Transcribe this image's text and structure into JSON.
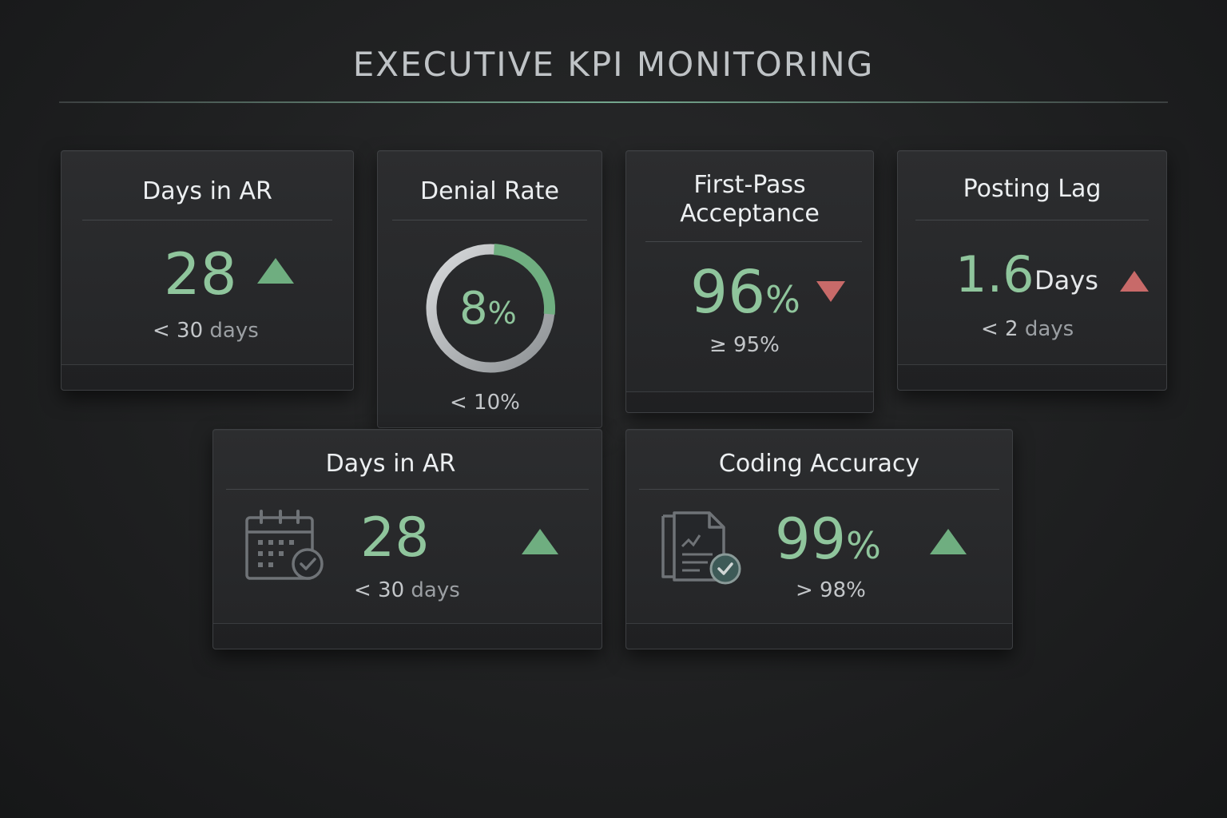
{
  "header": {
    "title": "EXECUTIVE KPI MONITORING"
  },
  "colors": {
    "accent_green": "#8fc59c",
    "trend_green": "#6fae80",
    "trend_red": "#c86a69",
    "background": "#1f2021"
  },
  "cards": [
    {
      "title": "Days in AR",
      "value": "28",
      "unit": "",
      "trend": "up-green",
      "target_main": "< 30",
      "target_suffix": "days"
    },
    {
      "title": "Denial Rate",
      "value": "8",
      "unit": "%",
      "gauge_fraction": 0.08,
      "target_main": "< 10%",
      "target_suffix": ""
    },
    {
      "title_line1": "First-Pass",
      "title_line2": "Acceptance",
      "value": "96",
      "unit": "%",
      "trend": "down-red",
      "target_main": "≥ 95%",
      "target_suffix": ""
    },
    {
      "title": "Posting Lag",
      "value": "1.6",
      "unit": "Days",
      "trend": "up-red",
      "target_main": "< 2",
      "target_suffix": "days"
    },
    {
      "title": "Days in AR",
      "icon": "calendar-check-icon",
      "value": "28",
      "unit": "",
      "trend": "up-green",
      "target_main": "< 30",
      "target_suffix": "days"
    },
    {
      "title": "Coding Accuracy",
      "icon": "document-check-icon",
      "value": "99",
      "unit": "%",
      "trend": "up-green",
      "target_main": "> 98%",
      "target_suffix": ""
    }
  ]
}
